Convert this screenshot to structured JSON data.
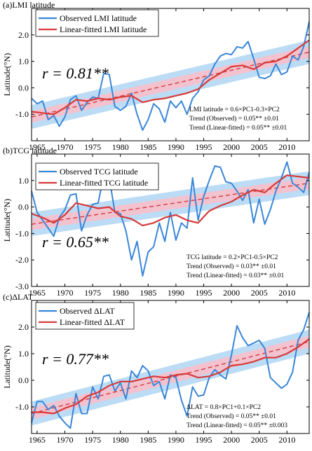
{
  "chart_data": [
    {
      "type": "line",
      "title": "(a)LMI latitude",
      "ylabel": "Latitude(°N)",
      "xlabel": "",
      "xlim": [
        1964,
        2014
      ],
      "ylim": [
        -2.0,
        3.0
      ],
      "x_ticks": [
        "1965",
        "1970",
        "1975",
        "1980",
        "1985",
        "1990",
        "1995",
        "2000",
        "2005",
        "2010"
      ],
      "y_ticks": [
        "-1.0",
        "0.0",
        "1.0",
        "2.0"
      ],
      "correlation_label": "r = 0.81**",
      "annotations": [
        "LMI latitude = 0.6×PC1-0.3×PC2",
        "Trend (Observed) = 0.05** ±0.01",
        "Trend (Linear-fitted) = 0.05** ±0.01"
      ],
      "trend": {
        "start": -1.1,
        "end": 1.35,
        "band_outer": 0.45,
        "band_inner": 0.22
      },
      "series": [
        {
          "name": "Observed LMI latitude",
          "color": "#3a86d8",
          "x": [
            1964,
            1965,
            1966,
            1967,
            1968,
            1969,
            1970,
            1971,
            1972,
            1973,
            1974,
            1975,
            1976,
            1977,
            1978,
            1979,
            1980,
            1981,
            1982,
            1983,
            1984,
            1985,
            1986,
            1987,
            1988,
            1989,
            1990,
            1991,
            1992,
            1993,
            1994,
            1995,
            1996,
            1997,
            1998,
            1999,
            2000,
            2001,
            2002,
            2003,
            2004,
            2005,
            2006,
            2007,
            2008,
            2009,
            2010,
            2011,
            2012,
            2013,
            2014
          ],
          "values": [
            -0.4,
            -0.6,
            -0.5,
            -1.2,
            -1.05,
            -1.45,
            -1.1,
            -0.45,
            -0.3,
            -0.85,
            -0.55,
            -0.35,
            -0.4,
            0.55,
            0.5,
            -0.7,
            -0.85,
            -0.7,
            -0.2,
            -1.0,
            -1.6,
            -1.2,
            -0.6,
            -0.8,
            -1.3,
            -0.5,
            -0.75,
            -0.5,
            -1.0,
            -0.4,
            -0.15,
            0.3,
            0.45,
            0.9,
            1.2,
            1.3,
            1.25,
            1.55,
            1.5,
            1.75,
            1.1,
            0.4,
            0.35,
            0.45,
            0.9,
            0.5,
            0.6,
            1.2,
            1.05,
            1.55,
            2.5
          ]
        },
        {
          "name": "Linear-fitted LMI latitude",
          "color": "#d63a3a",
          "x": [
            1964,
            1966,
            1968,
            1970,
            1972,
            1974,
            1976,
            1978,
            1980,
            1982,
            1984,
            1986,
            1988,
            1990,
            1992,
            1994,
            1996,
            1998,
            2000,
            2002,
            2004,
            2006,
            2008,
            2010,
            2012,
            2014
          ],
          "values": [
            -0.9,
            -0.95,
            -1.0,
            -0.75,
            -0.45,
            -0.5,
            -0.4,
            -0.45,
            -0.35,
            -0.3,
            -0.55,
            -0.45,
            -0.4,
            -0.3,
            -0.2,
            -0.05,
            0.3,
            0.55,
            0.8,
            0.85,
            0.7,
            0.95,
            1.0,
            1.2,
            1.5,
            1.8
          ]
        }
      ]
    },
    {
      "type": "line",
      "title": "(b)TCG latitude",
      "ylabel": "Latitude(°N)",
      "xlabel": "",
      "xlim": [
        1964,
        2014
      ],
      "ylim": [
        -3.0,
        2.0
      ],
      "x_ticks": [
        "1965",
        "1970",
        "1975",
        "1980",
        "1985",
        "1990",
        "1995",
        "2000",
        "2005",
        "2010"
      ],
      "y_ticks": [
        "-3.0",
        "-2.0",
        "-1.0",
        "0.0",
        "1.0"
      ],
      "correlation_label": "r = 0.65**",
      "annotations": [
        "TCG latitude = 0.2×PC1-0.5×PC2",
        "Trend (Observed) = 0.03** ±0.01",
        "Trend (Linear-fitted) = 0.03** ±0.01"
      ],
      "trend": {
        "start": -0.65,
        "end": 0.9,
        "band_outer": 0.45,
        "band_inner": 0.22
      },
      "series": [
        {
          "name": "Observed TCG latitude",
          "color": "#3a86d8",
          "x": [
            1964,
            1965,
            1966,
            1967,
            1968,
            1969,
            1970,
            1971,
            1972,
            1973,
            1974,
            1975,
            1976,
            1977,
            1978,
            1979,
            1980,
            1981,
            1982,
            1983,
            1984,
            1985,
            1986,
            1987,
            1988,
            1989,
            1990,
            1991,
            1992,
            1993,
            1994,
            1995,
            1996,
            1997,
            1998,
            1999,
            2000,
            2001,
            2002,
            2003,
            2004,
            2005,
            2006,
            2007,
            2008,
            2009,
            2010,
            2011,
            2012,
            2013,
            2014
          ],
          "values": [
            0.6,
            -0.2,
            -0.5,
            -0.8,
            -1.1,
            -0.4,
            -0.1,
            0.45,
            0.5,
            -0.9,
            -0.3,
            0.1,
            0.15,
            1.2,
            1.1,
            -0.2,
            -0.25,
            -0.9,
            -2.0,
            -1.3,
            -2.6,
            -1.7,
            -1.5,
            -0.6,
            -1.3,
            -0.2,
            -1.25,
            -0.6,
            -0.8,
            1.1,
            -0.5,
            0.4,
            1.0,
            1.55,
            1.5,
            0.95,
            0.9,
            0.6,
            0.25,
            0.65,
            -0.6,
            0.3,
            -0.65,
            -0.1,
            0.6,
            1.1,
            1.7,
            0.9,
            0.75,
            0.55,
            1.3
          ]
        },
        {
          "name": "Linear-fitted TCG latitude",
          "color": "#d63a3a",
          "x": [
            1964,
            1966,
            1968,
            1970,
            1972,
            1974,
            1976,
            1978,
            1980,
            1982,
            1984,
            1986,
            1988,
            1990,
            1992,
            1994,
            1996,
            1998,
            2000,
            2002,
            2004,
            2006,
            2008,
            2010,
            2012,
            2014
          ],
          "values": [
            -0.25,
            -0.4,
            -0.6,
            -0.3,
            0.15,
            0.05,
            -0.05,
            0.0,
            -0.35,
            -0.45,
            -0.7,
            -0.6,
            -0.4,
            -0.3,
            -0.5,
            -0.6,
            -0.15,
            0.05,
            0.2,
            0.45,
            0.65,
            0.55,
            0.9,
            1.2,
            1.15,
            1.1
          ]
        }
      ]
    },
    {
      "type": "line",
      "title": "(c)ΔLAT",
      "ylabel": "Latitude(°N)",
      "xlabel": "",
      "xlim": [
        1964,
        2014
      ],
      "ylim": [
        -2.0,
        3.0
      ],
      "x_ticks": [
        "1965",
        "1970",
        "1975",
        "1980",
        "1985",
        "1990",
        "1995",
        "2000",
        "2005",
        "2010"
      ],
      "y_ticks": [
        "-1.0",
        "0.0",
        "1.0",
        "2.0"
      ],
      "correlation_label": "r = 0.77**",
      "annotations": [
        "ΔLAT = 0.8×PC1+0.1×PC2",
        "Trend (Observed) = 0.05** ±0.01",
        "Trend (Linear-fitted) = 0.05** ±0.003"
      ],
      "trend": {
        "start": -1.25,
        "end": 1.45,
        "band_outer": 0.45,
        "band_inner": 0.22
      },
      "series": [
        {
          "name": "Observed ΔLAT",
          "color": "#3a86d8",
          "x": [
            1964,
            1965,
            1966,
            1967,
            1968,
            1969,
            1970,
            1971,
            1972,
            1973,
            1974,
            1975,
            1976,
            1977,
            1978,
            1979,
            1980,
            1981,
            1982,
            1983,
            1984,
            1985,
            1986,
            1987,
            1988,
            1989,
            1990,
            1991,
            1992,
            1993,
            1994,
            1995,
            1996,
            1997,
            1998,
            1999,
            2000,
            2001,
            2002,
            2003,
            2004,
            2005,
            2006,
            2007,
            2008,
            2009,
            2010,
            2011,
            2012,
            2013,
            2014
          ],
          "values": [
            -1.6,
            -0.8,
            -0.8,
            -1.1,
            -0.95,
            -1.35,
            -1.6,
            -1.8,
            -0.5,
            -1.25,
            -1.25,
            -0.25,
            -0.7,
            0.15,
            0.2,
            -0.4,
            -0.1,
            -0.7,
            0.35,
            0.1,
            0.55,
            0.35,
            -0.2,
            -0.05,
            -0.7,
            0.2,
            0.1,
            -0.75,
            -1.35,
            -0.25,
            -0.6,
            -0.55,
            0.1,
            0.4,
            0.2,
            0.05,
            0.95,
            2.05,
            1.6,
            1.3,
            1.4,
            1.5,
            1.2,
            0.1,
            -0.1,
            -0.3,
            -0.15,
            0.3,
            1.5,
            1.9,
            2.55
          ]
        },
        {
          "name": "Linear-fitted ΔLAT",
          "color": "#d63a3a",
          "x": [
            1964,
            1966,
            1968,
            1970,
            1972,
            1974,
            1976,
            1978,
            1980,
            1982,
            1984,
            1986,
            1988,
            1990,
            1992,
            1994,
            1996,
            1998,
            2000,
            2002,
            2004,
            2006,
            2008,
            2010,
            2012,
            2014
          ],
          "values": [
            -1.2,
            -1.2,
            -1.25,
            -1.05,
            -0.9,
            -0.6,
            -0.45,
            -0.2,
            -0.05,
            -0.05,
            0.05,
            0.15,
            0.1,
            0.2,
            0.25,
            0.1,
            0.15,
            0.3,
            0.55,
            0.6,
            0.7,
            0.85,
            0.85,
            1.0,
            1.25,
            1.55
          ]
        }
      ]
    }
  ]
}
